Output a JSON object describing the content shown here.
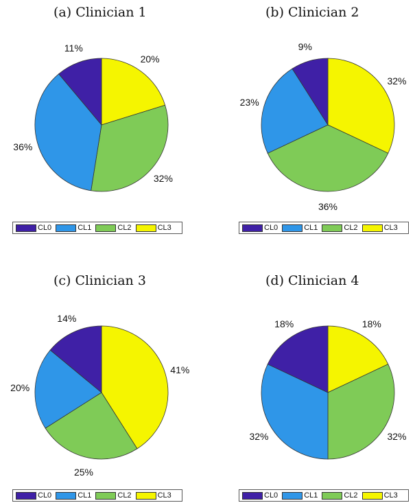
{
  "colors": {
    "CL0": "#3f20a6",
    "CL1": "#2f96e8",
    "CL2": "#7fcb57",
    "CL3": "#f5f500"
  },
  "legend_labels": [
    "CL0",
    "CL1",
    "CL2",
    "CL3"
  ],
  "chart_data": [
    {
      "type": "pie",
      "title": "(a) Clinician 1",
      "categories": [
        "CL0",
        "CL1",
        "CL2",
        "CL3"
      ],
      "values": [
        11,
        36,
        32,
        20
      ],
      "labels": [
        "11%",
        "36%",
        "32%",
        "20%"
      ],
      "legend": "bottom"
    },
    {
      "type": "pie",
      "title": "(b) Clinician 2",
      "categories": [
        "CL0",
        "CL1",
        "CL2",
        "CL3"
      ],
      "values": [
        9,
        23,
        36,
        32
      ],
      "labels": [
        "9%",
        "23%",
        "36%",
        "32%"
      ],
      "legend": "bottom"
    },
    {
      "type": "pie",
      "title": "(c) Clinician 3",
      "categories": [
        "CL0",
        "CL1",
        "CL2",
        "CL3"
      ],
      "values": [
        14,
        20,
        25,
        41
      ],
      "labels": [
        "14%",
        "20%",
        "25%",
        "41%"
      ],
      "legend": "bottom"
    },
    {
      "type": "pie",
      "title": "(d) Clinician 4",
      "categories": [
        "CL0",
        "CL1",
        "CL2",
        "CL3"
      ],
      "values": [
        18,
        32,
        32,
        18
      ],
      "labels": [
        "18%",
        "32%",
        "32%",
        "18%"
      ],
      "legend": "bottom"
    }
  ]
}
